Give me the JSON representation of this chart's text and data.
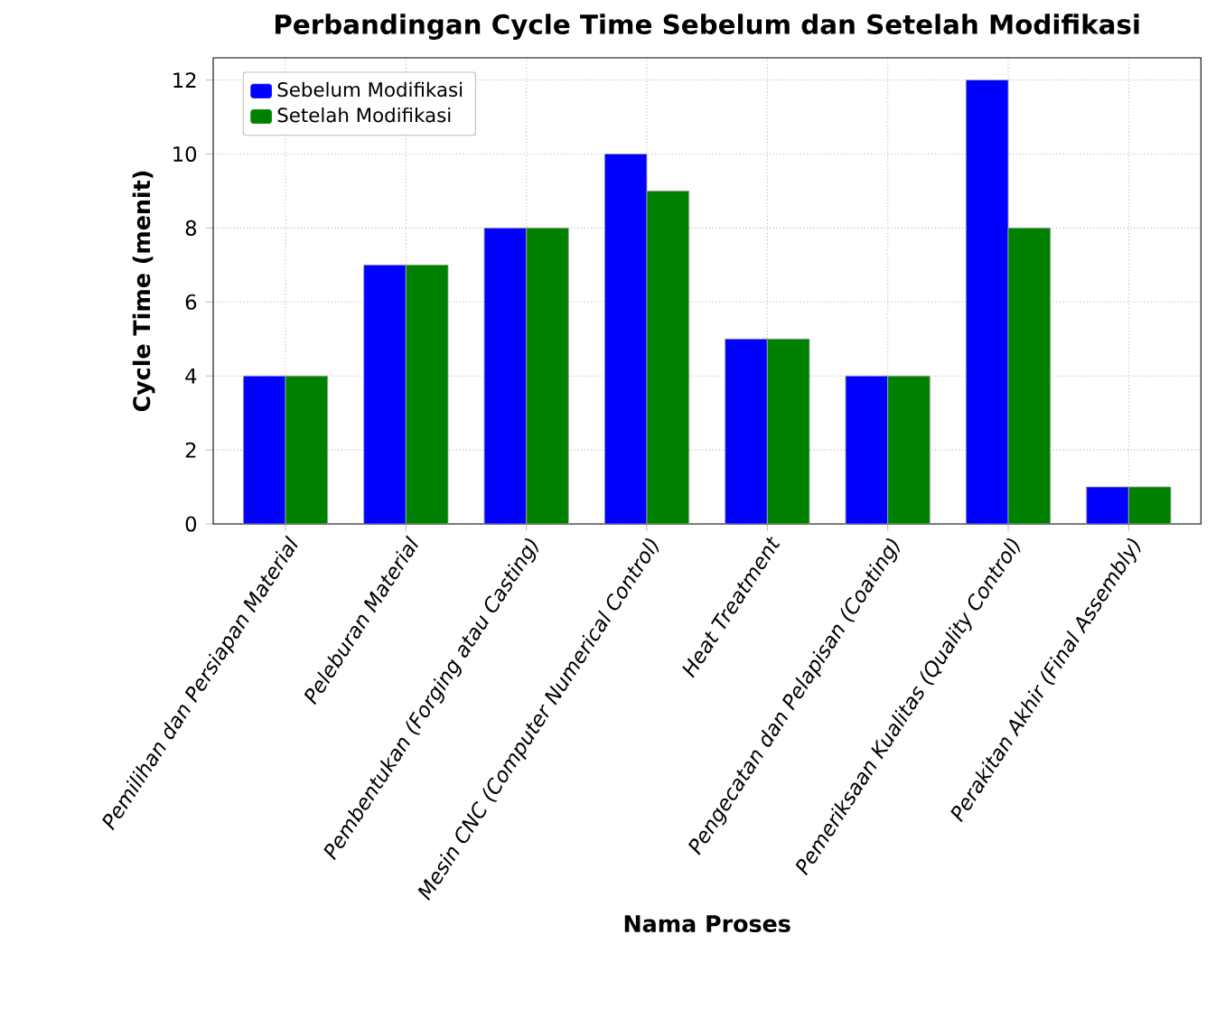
{
  "chart_data": {
    "type": "bar",
    "title": "Perbandingan Cycle Time Sebelum dan Setelah Modifikasi",
    "xlabel": "Nama Proses",
    "ylabel": "Cycle Time (menit)",
    "categories": [
      "Pemilihan dan Persiapan Material",
      "Peleburan Material",
      "Pembentukan (Forging atau Casting)",
      "Mesin CNC (Computer Numerical Control)",
      "Heat Treatment",
      "Pengecatan dan Pelapisan (Coating)",
      "Pemeriksaan Kualitas (Quality Control)",
      "Perakitan Akhir (Final Assembly)"
    ],
    "series": [
      {
        "name": "Sebelum Modifikasi",
        "color": "#0000ff",
        "values": [
          4,
          7,
          8,
          10,
          5,
          4,
          12,
          1
        ]
      },
      {
        "name": "Setelah Modifikasi",
        "color": "#008000",
        "values": [
          4,
          7,
          8,
          9,
          5,
          4,
          8,
          1
        ]
      }
    ],
    "ylim": [
      0,
      12.6
    ],
    "yticks": [
      0,
      2,
      4,
      6,
      8,
      10,
      12
    ],
    "grid": true,
    "legend": "top left"
  }
}
